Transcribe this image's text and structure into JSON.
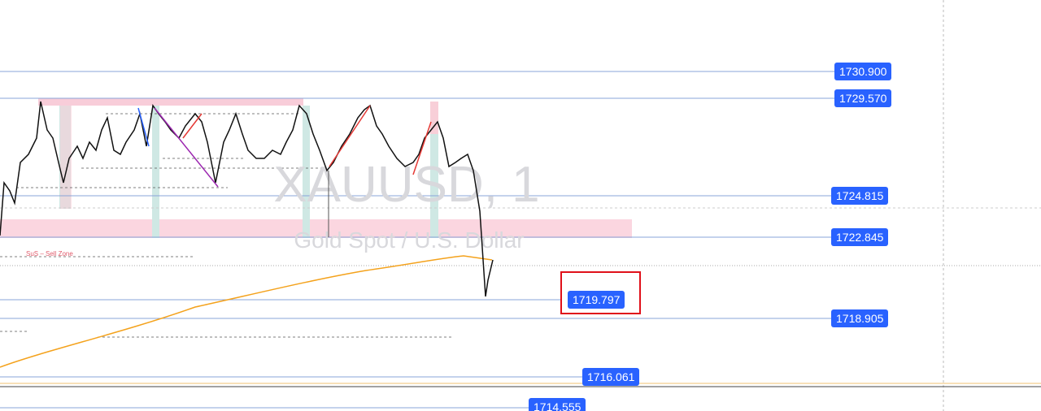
{
  "watermark": {
    "symbol": "XAUUSD, 1",
    "description": "Gold Spot / U.S. Dollar"
  },
  "zone_label": "SuS – Sell Zone",
  "price_levels": [
    "1730.900",
    "1729.570",
    "1724.815",
    "1722.845",
    "1719.797",
    "1718.905",
    "1716.061",
    "1714.555"
  ]
}
